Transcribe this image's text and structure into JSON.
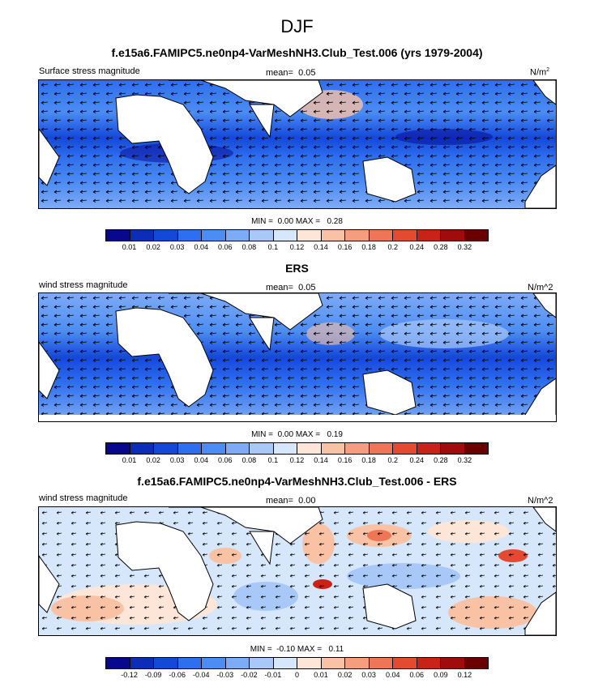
{
  "title": "DJF",
  "panels": [
    {
      "id": "model",
      "title": "f.e15a6.FAMIPC5.ne0np4-VarMeshNH3.Club_Test.006 (yrs 1979-2004)",
      "left_label": "Surface stress magnitude",
      "mean_label": "mean=",
      "mean_value": "0.05",
      "units": "N/m",
      "units_sup": "2",
      "min_label": "MIN =",
      "min_value": "0.00",
      "max_label": "MAX =",
      "max_value": "0.28",
      "ticks": [
        "0.01",
        "0.02",
        "0.03",
        "0.04",
        "0.06",
        "0.08",
        "0.1",
        "0.12",
        "0.14",
        "0.16",
        "0.18",
        "0.2",
        "0.24",
        "0.28",
        "0.32"
      ],
      "colors": [
        "#08088f",
        "#0c2db8",
        "#1448d8",
        "#2e6ef0",
        "#4c8cf5",
        "#7eabf5",
        "#a8c8f7",
        "#d6e6fb",
        "#fde5d8",
        "#f9c2a5",
        "#f59d7d",
        "#ee7555",
        "#e44a30",
        "#c92216",
        "#a00c0c",
        "#6b0000"
      ]
    },
    {
      "id": "obs",
      "title": "ERS",
      "left_label": "wind stress magnitude",
      "mean_label": "mean=",
      "mean_value": "0.05",
      "units": "N/m^2",
      "units_sup": "",
      "min_label": "MIN =",
      "min_value": "0.00",
      "max_label": "MAX =",
      "max_value": "0.19",
      "ticks": [
        "0.01",
        "0.02",
        "0.03",
        "0.04",
        "0.06",
        "0.08",
        "0.1",
        "0.12",
        "0.14",
        "0.16",
        "0.18",
        "0.2",
        "0.24",
        "0.28",
        "0.32"
      ],
      "colors": [
        "#08088f",
        "#0c2db8",
        "#1448d8",
        "#2e6ef0",
        "#4c8cf5",
        "#7eabf5",
        "#a8c8f7",
        "#d6e6fb",
        "#fde5d8",
        "#f9c2a5",
        "#f59d7d",
        "#ee7555",
        "#e44a30",
        "#c92216",
        "#a00c0c",
        "#6b0000"
      ]
    },
    {
      "id": "diff",
      "title": "f.e15a6.FAMIPC5.ne0np4-VarMeshNH3.Club_Test.006 - ERS",
      "left_label": "wind stress magnitude",
      "mean_label": "mean=",
      "mean_value": "0.00",
      "units": "N/m^2",
      "units_sup": "",
      "min_label": "MIN =",
      "min_value": "-0.10",
      "max_label": "MAX =",
      "max_value": "0.11",
      "ticks": [
        "-0.12",
        "-0.09",
        "-0.06",
        "-0.04",
        "-0.03",
        "-0.02",
        "-0.01",
        "0",
        "0.01",
        "0.02",
        "0.03",
        "0.04",
        "0.06",
        "0.09",
        "0.12"
      ],
      "colors": [
        "#08088f",
        "#0c2db8",
        "#1448d8",
        "#2e6ef0",
        "#4c8cf5",
        "#7eabf5",
        "#a8c8f7",
        "#d6e6fb",
        "#fde5d8",
        "#f9c2a5",
        "#f59d7d",
        "#ee7555",
        "#e44a30",
        "#c92216",
        "#a00c0c",
        "#6b0000"
      ]
    }
  ]
}
